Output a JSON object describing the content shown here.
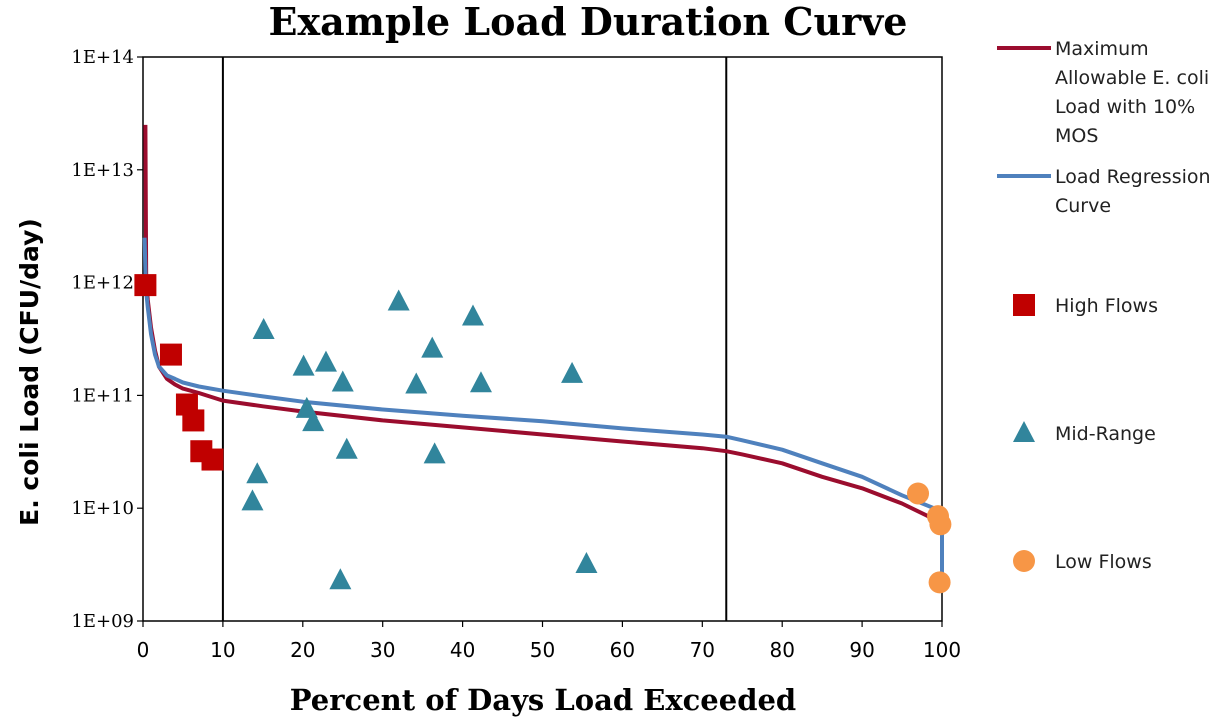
{
  "chart_data": {
    "type": "scatter",
    "title": "Example Load Duration Curve",
    "xlabel": "Percent of Days Load Exceeded",
    "ylabel": "E. coli Load (CFU/day)",
    "xlim": [
      0,
      100
    ],
    "ylim": [
      1000000000.0,
      100000000000000.0
    ],
    "yscale": "log",
    "x_ticks": [
      0,
      10,
      20,
      30,
      40,
      50,
      60,
      70,
      80,
      90,
      100
    ],
    "x_tick_labels": [
      "0",
      "10",
      "20",
      "30",
      "40",
      "50",
      "60",
      "70",
      "80",
      "90",
      "100"
    ],
    "y_ticks": [
      1000000000.0,
      10000000000.0,
      100000000000.0,
      1000000000000.0,
      10000000000000.0,
      100000000000000.0
    ],
    "y_tick_labels": [
      "1E+09",
      "1E+10",
      "1E+11",
      "1E+12",
      "1E+13",
      "1E+14"
    ],
    "vertical_lines": [
      10,
      73
    ],
    "grid": false,
    "legend_position": "right",
    "series": [
      {
        "name": "Maximum Allowable E. coli Load with 10% MOS",
        "legend_lines": [
          "Maximum",
          "Allowable E. coli",
          "Load with 10%",
          "MOS"
        ],
        "kind": "line",
        "color": "#9b0d2e",
        "x": [
          0.3,
          0.4,
          0.6,
          1,
          1.5,
          2,
          3,
          4,
          5,
          7,
          10,
          15,
          20,
          30,
          40,
          50,
          60,
          70,
          73,
          75,
          80,
          85,
          90,
          95,
          99
        ],
        "y": [
          25000000000000.0,
          1000000000000.0,
          700000000000.0,
          400000000000.0,
          250000000000.0,
          180000000000.0,
          140000000000.0,
          125000000000.0,
          115000000000.0,
          105000000000.0,
          90000000000.0,
          80000000000.0,
          72000000000.0,
          60000000000.0,
          52000000000.0,
          45000000000.0,
          39000000000.0,
          34000000000.0,
          32000000000.0,
          30000000000.0,
          25000000000.0,
          19000000000.0,
          15000000000.0,
          11000000000.0,
          8000000000.0
        ]
      },
      {
        "name": "Load Regression Curve",
        "legend_lines": [
          "Load Regression",
          "Curve"
        ],
        "kind": "line",
        "color": "#4f81bd",
        "x": [
          0.2,
          0.35,
          0.6,
          1,
          1.5,
          2,
          3,
          4,
          5,
          7,
          10,
          15,
          20,
          30,
          40,
          50,
          60,
          70,
          73,
          75,
          80,
          85,
          90,
          95,
          99,
          99.5,
          100,
          100
        ],
        "y": [
          2500000000000.0,
          900000000000.0,
          600000000000.0,
          350000000000.0,
          230000000000.0,
          180000000000.0,
          150000000000.0,
          140000000000.0,
          130000000000.0,
          120000000000.0,
          110000000000.0,
          98000000000.0,
          88000000000.0,
          75000000000.0,
          66000000000.0,
          59000000000.0,
          51000000000.0,
          45000000000.0,
          43000000000.0,
          40000000000.0,
          33000000000.0,
          25000000000.0,
          19000000000.0,
          13000000000.0,
          10000000000.0,
          9000000000.0,
          8000000000.0,
          1800000000.0
        ]
      },
      {
        "name": "High Flows",
        "legend_lines": [
          "High Flows"
        ],
        "kind": "scatter",
        "marker": "square",
        "color": "#c00000",
        "x": [
          0.3,
          3.5,
          5.5,
          6.3,
          7.3,
          8.7
        ],
        "y": [
          950000000000.0,
          230000000000.0,
          83000000000.0,
          60000000000.0,
          32000000000.0,
          27000000000.0
        ]
      },
      {
        "name": "Mid-Range",
        "legend_lines": [
          "Mid-Range"
        ],
        "kind": "scatter",
        "marker": "triangle",
        "color": "#31859c",
        "x": [
          13.7,
          14.3,
          15.1,
          20.1,
          20.5,
          21.3,
          22.9,
          24.7,
          25,
          25.5,
          32,
          34.2,
          36.2,
          36.5,
          41.3,
          42.3,
          53.7,
          55.5
        ],
        "y": [
          11500000000.0,
          20000000000.0,
          380000000000.0,
          180000000000.0,
          76000000000.0,
          58000000000.0,
          195000000000.0,
          2300000000.0,
          130000000000.0,
          33000000000.0,
          680000000000.0,
          125000000000.0,
          260000000000.0,
          30000000000.0,
          500000000000.0,
          128000000000.0,
          155000000000.0,
          3200000000.0
        ]
      },
      {
        "name": "Low Flows",
        "legend_lines": [
          "Low Flows"
        ],
        "kind": "scatter",
        "marker": "circle",
        "color": "#f79646",
        "x": [
          97,
          99.5,
          99.8,
          99.7
        ],
        "y": [
          13500000000.0,
          8500000000.0,
          7200000000.0,
          2200000000.0
        ]
      }
    ]
  }
}
